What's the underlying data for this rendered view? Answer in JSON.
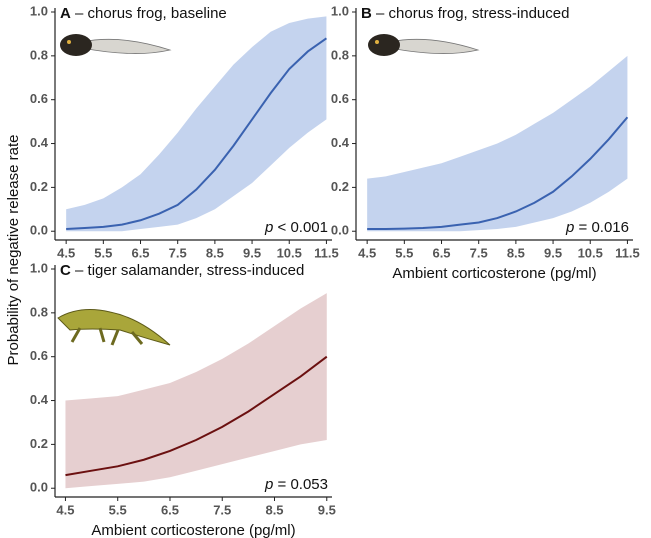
{
  "chart_data": [
    {
      "type": "line",
      "panel": "A",
      "title": "– chorus frog, baseline",
      "ylabel": "Probability of negative release rate",
      "p_symbol": "p",
      "p_value": "< 0.001",
      "x": [
        4.5,
        5,
        5.5,
        6,
        6.5,
        7,
        7.5,
        8,
        8.5,
        9,
        9.5,
        10,
        10.5,
        11,
        11.5
      ],
      "values": [
        0.01,
        0.015,
        0.02,
        0.03,
        0.05,
        0.08,
        0.12,
        0.19,
        0.28,
        0.39,
        0.51,
        0.63,
        0.74,
        0.82,
        0.88
      ],
      "upper": [
        0.1,
        0.12,
        0.15,
        0.2,
        0.26,
        0.35,
        0.45,
        0.56,
        0.66,
        0.76,
        0.84,
        0.91,
        0.95,
        0.97,
        0.98
      ],
      "lower": [
        0.0,
        0.0,
        0.0,
        0.0,
        0.01,
        0.02,
        0.03,
        0.06,
        0.1,
        0.16,
        0.22,
        0.3,
        0.38,
        0.45,
        0.51
      ],
      "color": "#3a62b0",
      "band_color": "#c4d3ee",
      "xlim": [
        4.2,
        11.65
      ],
      "xticks": [
        4.5,
        5.5,
        6.5,
        7.5,
        8.5,
        9.5,
        10.5,
        11.5
      ],
      "ylim": [
        -0.04,
        1.0
      ],
      "yticks": [
        {
          "value": 0,
          "label": "0.0"
        },
        {
          "value": 0.2,
          "label": "0.2"
        },
        {
          "value": 0.4,
          "label": "0.4"
        },
        {
          "value": 0.6,
          "label": "0.6"
        },
        {
          "value": 0.8,
          "label": "0.8"
        },
        {
          "value": 1,
          "label": "1.0"
        }
      ]
    },
    {
      "type": "line",
      "panel": "B",
      "title": "– chorus frog, stress-induced",
      "xlabel": "Ambient corticosterone (pg/ml)",
      "p_symbol": "p",
      "p_value": "= 0.016",
      "x": [
        4.5,
        5,
        5.5,
        6,
        6.5,
        7,
        7.5,
        8,
        8.5,
        9,
        9.5,
        10,
        10.5,
        11,
        11.5
      ],
      "values": [
        0.01,
        0.01,
        0.012,
        0.015,
        0.02,
        0.03,
        0.04,
        0.06,
        0.09,
        0.13,
        0.18,
        0.25,
        0.33,
        0.42,
        0.52
      ],
      "upper": [
        0.24,
        0.25,
        0.27,
        0.29,
        0.31,
        0.34,
        0.37,
        0.4,
        0.44,
        0.49,
        0.54,
        0.6,
        0.66,
        0.73,
        0.8
      ],
      "lower": [
        0.0,
        0.0,
        0.0,
        0.0,
        0.0,
        0.0,
        0.005,
        0.01,
        0.02,
        0.04,
        0.06,
        0.09,
        0.13,
        0.18,
        0.24
      ],
      "color": "#3a62b0",
      "band_color": "#c4d3ee",
      "xlim": [
        4.2,
        11.65
      ],
      "xticks": [
        4.5,
        5.5,
        6.5,
        7.5,
        8.5,
        9.5,
        10.5,
        11.5
      ],
      "ylim": [
        -0.04,
        1.0
      ],
      "yticks": [
        {
          "value": 0,
          "label": "0.0"
        },
        {
          "value": 0.2,
          "label": "0.2"
        },
        {
          "value": 0.4,
          "label": "0.4"
        },
        {
          "value": 0.6,
          "label": "0.6"
        },
        {
          "value": 0.8,
          "label": "0.8"
        },
        {
          "value": 1,
          "label": "1.0"
        }
      ]
    },
    {
      "type": "line",
      "panel": "C",
      "title": "– tiger salamander, stress-induced",
      "xlabel": "Ambient corticosterone (pg/ml)",
      "p_symbol": "p",
      "p_value": "= 0.053",
      "x": [
        4.5,
        5,
        5.5,
        6,
        6.5,
        7,
        7.5,
        8,
        8.5,
        9,
        9.5
      ],
      "values": [
        0.06,
        0.08,
        0.1,
        0.13,
        0.17,
        0.22,
        0.28,
        0.35,
        0.43,
        0.51,
        0.6
      ],
      "upper": [
        0.4,
        0.41,
        0.42,
        0.45,
        0.48,
        0.53,
        0.59,
        0.66,
        0.74,
        0.82,
        0.89
      ],
      "lower": [
        0.0,
        0.01,
        0.02,
        0.03,
        0.05,
        0.08,
        0.11,
        0.14,
        0.17,
        0.2,
        0.22
      ],
      "color": "#6b1010",
      "band_color": "#e6cfd0",
      "xlim": [
        4.3,
        9.6
      ],
      "xticks": [
        4.5,
        5.5,
        6.5,
        7.5,
        8.5,
        9.5
      ],
      "ylim": [
        -0.04,
        1.0
      ],
      "yticks": [
        {
          "value": 0,
          "label": "0.0"
        },
        {
          "value": 0.2,
          "label": "0.2"
        },
        {
          "value": 0.4,
          "label": "0.4"
        },
        {
          "value": 0.6,
          "label": "0.6"
        },
        {
          "value": 0.8,
          "label": "0.8"
        },
        {
          "value": 1,
          "label": "1.0"
        }
      ]
    }
  ]
}
